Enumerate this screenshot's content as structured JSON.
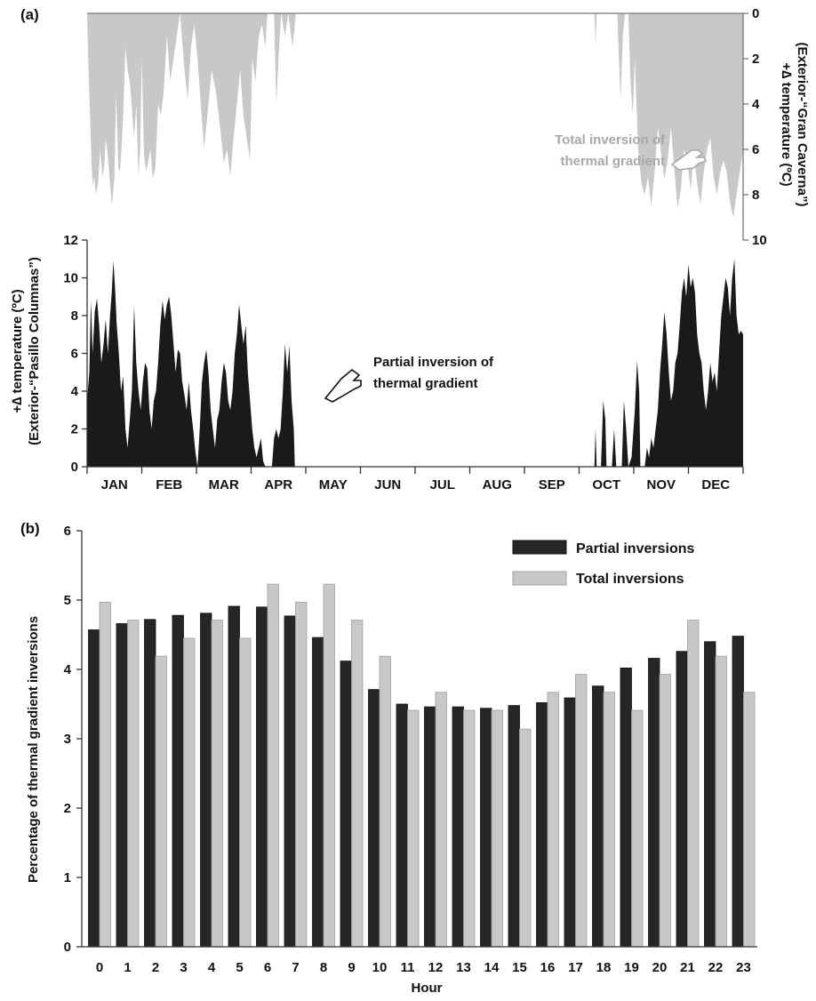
{
  "chart_data": [
    {
      "panel": "(a)",
      "type": "area",
      "months": [
        "JAN",
        "FEB",
        "MAR",
        "APR",
        "MAY",
        "JUN",
        "JUL",
        "AUG",
        "SEP",
        "OCT",
        "NOV",
        "DEC"
      ],
      "top_area": {
        "name": "Total inversion of thermal gradient",
        "axis_label_line1": "+∆ temperature (ºC)",
        "axis_label_line2": "(Exterior-“Gran Caverna”)",
        "ylim": [
          0,
          10
        ],
        "yticks": [
          "0",
          "2",
          "4",
          "6",
          "8",
          "10"
        ],
        "inverted": true,
        "color": "#c8c8c8",
        "points": [
          [
            0.0,
            0
          ],
          [
            0.02,
            2
          ],
          [
            0.08,
            6.5
          ],
          [
            0.1,
            7.6
          ],
          [
            0.13,
            7.2
          ],
          [
            0.16,
            8.0
          ],
          [
            0.2,
            7.5
          ],
          [
            0.24,
            6.0
          ],
          [
            0.28,
            7.2
          ],
          [
            0.31,
            6.8
          ],
          [
            0.34,
            5.5
          ],
          [
            0.38,
            6.3
          ],
          [
            0.42,
            7.5
          ],
          [
            0.45,
            8.5
          ],
          [
            0.48,
            7.8
          ],
          [
            0.5,
            7.2
          ],
          [
            0.53,
            3.5
          ],
          [
            0.57,
            6.8
          ],
          [
            0.6,
            7.0
          ],
          [
            0.63,
            6.0
          ],
          [
            0.66,
            4.5
          ],
          [
            0.7,
            1.5
          ],
          [
            0.74,
            2.5
          ],
          [
            0.78,
            3.0
          ],
          [
            0.82,
            4.2
          ],
          [
            0.86,
            5.5
          ],
          [
            0.9,
            4.0
          ],
          [
            0.94,
            7.2
          ],
          [
            0.97,
            6.0
          ],
          [
            1.0,
            2.0
          ],
          [
            1.04,
            6.2
          ],
          [
            1.08,
            7.0
          ],
          [
            1.12,
            6.5
          ],
          [
            1.16,
            6.0
          ],
          [
            1.2,
            7.3
          ],
          [
            1.25,
            6.8
          ],
          [
            1.3,
            4.0
          ],
          [
            1.35,
            4.5
          ],
          [
            1.4,
            3.5
          ],
          [
            1.46,
            1.0
          ],
          [
            1.52,
            3.0
          ],
          [
            1.58,
            2.0
          ],
          [
            1.64,
            1.0
          ],
          [
            1.7,
            0
          ],
          [
            1.78,
            2.5
          ],
          [
            1.84,
            3.8
          ],
          [
            1.9,
            1.5
          ],
          [
            1.96,
            0.5
          ],
          [
            2.02,
            2.0
          ],
          [
            2.08,
            4.0
          ],
          [
            2.14,
            6.0
          ],
          [
            2.2,
            4.5
          ],
          [
            2.28,
            2.5
          ],
          [
            2.36,
            3.5
          ],
          [
            2.44,
            5.2
          ],
          [
            2.5,
            6.6
          ],
          [
            2.56,
            6.0
          ],
          [
            2.62,
            7.2
          ],
          [
            2.66,
            6.0
          ],
          [
            2.72,
            4.5
          ],
          [
            2.8,
            2.5
          ],
          [
            2.86,
            4.5
          ],
          [
            2.92,
            5.5
          ],
          [
            2.98,
            6.5
          ],
          [
            3.02,
            2.0
          ],
          [
            3.08,
            3.0
          ],
          [
            3.14,
            1.0
          ],
          [
            3.2,
            0.5
          ],
          [
            3.26,
            1.5
          ],
          [
            3.3,
            0
          ],
          [
            3.42,
            0
          ],
          [
            3.46,
            4.0
          ],
          [
            3.5,
            2.0
          ],
          [
            3.55,
            0
          ],
          [
            3.62,
            1.0
          ],
          [
            3.68,
            0
          ],
          [
            3.76,
            1.5
          ],
          [
            3.82,
            0
          ],
          [
            9.28,
            0
          ],
          [
            9.3,
            1.4
          ],
          [
            9.32,
            0
          ],
          [
            9.7,
            0
          ],
          [
            9.72,
            1.5
          ],
          [
            9.76,
            3.8
          ],
          [
            9.8,
            1.0
          ],
          [
            9.84,
            0
          ],
          [
            9.9,
            0
          ],
          [
            9.94,
            3.0
          ],
          [
            9.98,
            4.5
          ],
          [
            10.02,
            2.0
          ],
          [
            10.08,
            6.0
          ],
          [
            10.14,
            7.5
          ],
          [
            10.2,
            8.0
          ],
          [
            10.26,
            7.2
          ],
          [
            10.32,
            8.5
          ],
          [
            10.38,
            7.0
          ],
          [
            10.44,
            5.0
          ],
          [
            10.5,
            6.2
          ],
          [
            10.56,
            7.3
          ],
          [
            10.62,
            6.5
          ],
          [
            10.68,
            5.0
          ],
          [
            10.74,
            6.8
          ],
          [
            10.8,
            8.6
          ],
          [
            10.86,
            7.8
          ],
          [
            10.92,
            6.0
          ],
          [
            10.98,
            6.6
          ],
          [
            11.04,
            7.8
          ],
          [
            11.1,
            6.2
          ],
          [
            11.16,
            7.5
          ],
          [
            11.22,
            8.4
          ],
          [
            11.28,
            7.0
          ],
          [
            11.34,
            6.0
          ],
          [
            11.4,
            5.5
          ],
          [
            11.46,
            7.2
          ],
          [
            11.52,
            8.0
          ],
          [
            11.58,
            7.0
          ],
          [
            11.64,
            6.5
          ],
          [
            11.7,
            7.0
          ],
          [
            11.76,
            8.3
          ],
          [
            11.82,
            9.0
          ],
          [
            11.88,
            8.0
          ],
          [
            11.94,
            7.0
          ],
          [
            12.0,
            6.0
          ]
        ]
      },
      "bottom_area": {
        "name": "Partial inversion of thermal gradient",
        "axis_label_line1": "+∆ temperature (ºC)",
        "axis_label_line2": "(Exterior-“Pasillo Columnas”)",
        "ylim": [
          0,
          12
        ],
        "yticks": [
          "0",
          "2",
          "4",
          "6",
          "8",
          "10",
          "12"
        ],
        "color": "#1a1a1a",
        "points": [
          [
            0.0,
            3.5
          ],
          [
            0.04,
            5.0
          ],
          [
            0.07,
            8.8
          ],
          [
            0.1,
            6.0
          ],
          [
            0.14,
            8.2
          ],
          [
            0.18,
            8.9
          ],
          [
            0.22,
            7.5
          ],
          [
            0.26,
            5.5
          ],
          [
            0.3,
            6.5
          ],
          [
            0.34,
            7.8
          ],
          [
            0.38,
            6.0
          ],
          [
            0.42,
            8.0
          ],
          [
            0.45,
            9.2
          ],
          [
            0.48,
            10.9
          ],
          [
            0.51,
            9.5
          ],
          [
            0.54,
            7.6
          ],
          [
            0.58,
            6.0
          ],
          [
            0.62,
            4.0
          ],
          [
            0.66,
            4.8
          ],
          [
            0.7,
            2.0
          ],
          [
            0.74,
            1.0
          ],
          [
            0.78,
            2.5
          ],
          [
            0.82,
            4.0
          ],
          [
            0.86,
            8.5
          ],
          [
            0.9,
            5.5
          ],
          [
            0.94,
            4.0
          ],
          [
            0.98,
            3.0
          ],
          [
            1.02,
            4.5
          ],
          [
            1.06,
            5.5
          ],
          [
            1.1,
            5.2
          ],
          [
            1.14,
            3.0
          ],
          [
            1.18,
            2.0
          ],
          [
            1.22,
            3.5
          ],
          [
            1.26,
            4.0
          ],
          [
            1.3,
            5.5
          ],
          [
            1.34,
            7.5
          ],
          [
            1.38,
            8.8
          ],
          [
            1.42,
            7.8
          ],
          [
            1.46,
            8.6
          ],
          [
            1.5,
            9.0
          ],
          [
            1.54,
            8.0
          ],
          [
            1.58,
            6.5
          ],
          [
            1.62,
            5.0
          ],
          [
            1.66,
            6.2
          ],
          [
            1.7,
            6.0
          ],
          [
            1.74,
            4.5
          ],
          [
            1.78,
            3.8
          ],
          [
            1.82,
            3.0
          ],
          [
            1.86,
            4.5
          ],
          [
            1.9,
            3.0
          ],
          [
            1.94,
            2.0
          ],
          [
            1.98,
            0.8
          ],
          [
            2.02,
            0
          ],
          [
            2.06,
            2.0
          ],
          [
            2.1,
            4.5
          ],
          [
            2.14,
            5.5
          ],
          [
            2.18,
            6.2
          ],
          [
            2.22,
            5.0
          ],
          [
            2.26,
            3.0
          ],
          [
            2.3,
            2.0
          ],
          [
            2.34,
            1.0
          ],
          [
            2.38,
            2.5
          ],
          [
            2.42,
            3.0
          ],
          [
            2.46,
            4.5
          ],
          [
            2.5,
            5.5
          ],
          [
            2.54,
            5.0
          ],
          [
            2.58,
            3.5
          ],
          [
            2.62,
            3.0
          ],
          [
            2.66,
            4.0
          ],
          [
            2.7,
            6.0
          ],
          [
            2.74,
            7.0
          ],
          [
            2.78,
            8.6
          ],
          [
            2.82,
            7.5
          ],
          [
            2.86,
            6.5
          ],
          [
            2.9,
            7.5
          ],
          [
            2.94,
            5.0
          ],
          [
            2.98,
            3.5
          ],
          [
            3.02,
            2.0
          ],
          [
            3.06,
            1.0
          ],
          [
            3.1,
            0.5
          ],
          [
            3.14,
            1.0
          ],
          [
            3.18,
            1.5
          ],
          [
            3.22,
            0.3
          ],
          [
            3.26,
            0
          ],
          [
            3.38,
            0
          ],
          [
            3.42,
            1.5
          ],
          [
            3.46,
            2.0
          ],
          [
            3.5,
            1.5
          ],
          [
            3.54,
            2.0
          ],
          [
            3.58,
            4.0
          ],
          [
            3.62,
            6.5
          ],
          [
            3.66,
            5.0
          ],
          [
            3.7,
            6.4
          ],
          [
            3.74,
            3.5
          ],
          [
            3.78,
            2.0
          ],
          [
            3.8,
            0
          ],
          [
            9.28,
            0
          ],
          [
            9.3,
            2.0
          ],
          [
            9.32,
            0
          ],
          [
            9.4,
            0
          ],
          [
            9.44,
            3.5
          ],
          [
            9.48,
            2.5
          ],
          [
            9.5,
            0
          ],
          [
            9.6,
            0
          ],
          [
            9.64,
            2.0
          ],
          [
            9.68,
            0
          ],
          [
            9.78,
            0
          ],
          [
            9.82,
            3.5
          ],
          [
            9.86,
            2.0
          ],
          [
            9.9,
            0
          ],
          [
            9.96,
            0.5
          ],
          [
            10.02,
            3.0
          ],
          [
            10.06,
            5.6
          ],
          [
            10.1,
            4.0
          ],
          [
            10.12,
            0
          ],
          [
            10.2,
            0
          ],
          [
            10.24,
            1.0
          ],
          [
            10.28,
            0.5
          ],
          [
            10.32,
            1.5
          ],
          [
            10.36,
            1.0
          ],
          [
            10.4,
            2.0
          ],
          [
            10.44,
            3.0
          ],
          [
            10.48,
            5.0
          ],
          [
            10.52,
            6.5
          ],
          [
            10.56,
            8.2
          ],
          [
            10.6,
            7.0
          ],
          [
            10.64,
            5.0
          ],
          [
            10.68,
            3.5
          ],
          [
            10.72,
            4.0
          ],
          [
            10.76,
            5.5
          ],
          [
            10.8,
            6.0
          ],
          [
            10.84,
            7.5
          ],
          [
            10.88,
            9.2
          ],
          [
            10.92,
            10.0
          ],
          [
            10.96,
            9.0
          ],
          [
            11.0,
            10.7
          ],
          [
            11.04,
            9.5
          ],
          [
            11.08,
            10.0
          ],
          [
            11.12,
            9.2
          ],
          [
            11.16,
            7.0
          ],
          [
            11.2,
            6.0
          ],
          [
            11.24,
            5.5
          ],
          [
            11.28,
            4.0
          ],
          [
            11.32,
            3.0
          ],
          [
            11.36,
            4.0
          ],
          [
            11.4,
            5.5
          ],
          [
            11.44,
            4.5
          ],
          [
            11.48,
            5.0
          ],
          [
            11.52,
            4.0
          ],
          [
            11.56,
            6.0
          ],
          [
            11.6,
            8.0
          ],
          [
            11.64,
            9.0
          ],
          [
            11.68,
            10.0
          ],
          [
            11.72,
            9.5
          ],
          [
            11.76,
            8.0
          ],
          [
            11.8,
            10.0
          ],
          [
            11.84,
            11.0
          ],
          [
            11.88,
            8.0
          ],
          [
            11.92,
            7.0
          ],
          [
            11.96,
            7.2
          ],
          [
            12.0,
            7.0
          ]
        ]
      }
    },
    {
      "panel": "(b)",
      "type": "bar",
      "xlabel": "Hour",
      "ylabel": "Percentage of thermal gradient inversions",
      "ylim": [
        0,
        6
      ],
      "yticks": [
        "0",
        "1",
        "2",
        "3",
        "4",
        "5",
        "6"
      ],
      "categories": [
        "0",
        "1",
        "2",
        "3",
        "4",
        "5",
        "6",
        "7",
        "8",
        "9",
        "10",
        "11",
        "12",
        "13",
        "14",
        "15",
        "16",
        "17",
        "18",
        "19",
        "20",
        "21",
        "22",
        "23"
      ],
      "legend_position": "top-right",
      "series": [
        {
          "name": "Partial inversions",
          "color": "#262626",
          "values": [
            4.57,
            4.66,
            4.72,
            4.78,
            4.81,
            4.91,
            4.9,
            4.77,
            4.46,
            4.12,
            3.71,
            3.5,
            3.46,
            3.46,
            3.44,
            3.48,
            3.52,
            3.59,
            3.76,
            4.02,
            4.16,
            4.26,
            4.4,
            4.48
          ]
        },
        {
          "name": "Total inversions",
          "color": "#c8c8c8",
          "values": [
            4.97,
            4.71,
            4.19,
            4.45,
            4.71,
            4.45,
            5.23,
            4.97,
            5.23,
            4.71,
            4.19,
            3.41,
            3.67,
            3.41,
            3.41,
            3.14,
            3.67,
            3.93,
            3.67,
            3.41,
            3.93,
            4.71,
            4.19,
            3.67
          ]
        }
      ]
    }
  ]
}
